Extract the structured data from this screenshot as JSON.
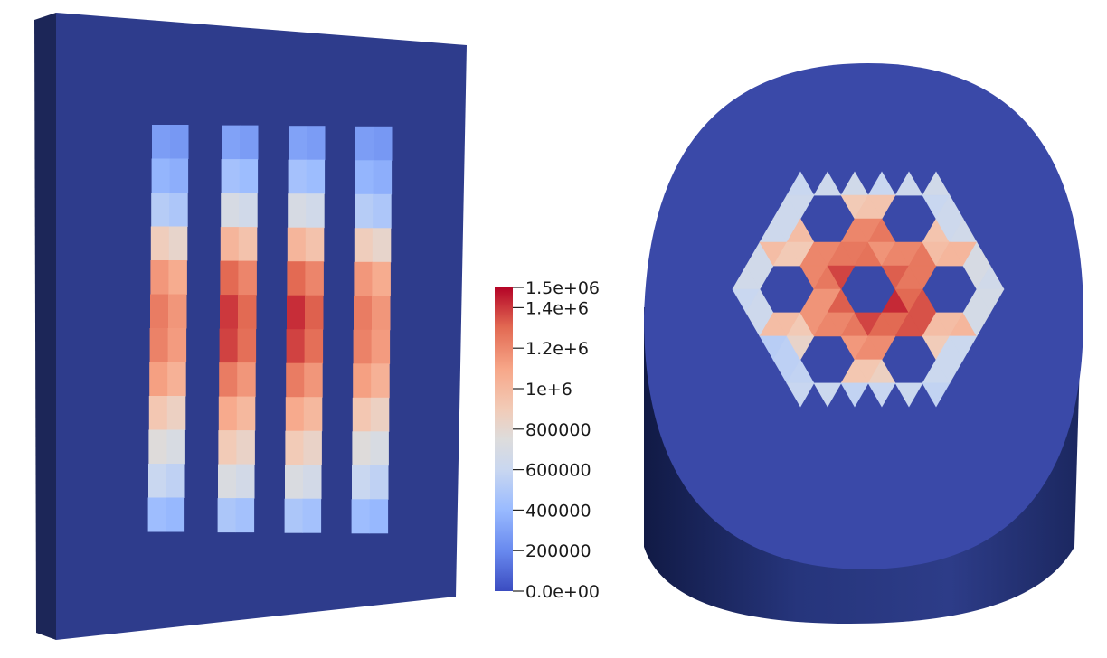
{
  "colors": {
    "background": "#ffffff",
    "zero_field": "#3a4cc0",
    "block_side": "#23306e",
    "block_edge": "#161e4a",
    "cylinder_side": "#26357c",
    "colormap_low": "#3b4cc0",
    "colormap_mid": "#dddddd",
    "colormap_high": "#b40426"
  },
  "colorbar": {
    "min": 0,
    "max": 1500000,
    "labels": [
      {
        "text": "1.5e+06",
        "value": 1500000
      },
      {
        "text": "1.4e+6",
        "value": 1400000
      },
      {
        "text": "1.2e+6",
        "value": 1200000
      },
      {
        "text": "1e+6",
        "value": 1000000
      },
      {
        "text": "800000",
        "value": 800000
      },
      {
        "text": "600000",
        "value": 600000
      },
      {
        "text": "400000",
        "value": 400000
      },
      {
        "text": "200000",
        "value": 200000
      },
      {
        "text": "0.0e+00",
        "value": 0
      }
    ]
  },
  "left_view": {
    "strip_values": [
      [
        280000,
        380000,
        520000,
        880000,
        1150000,
        1240000,
        1220000,
        1120000,
        920000,
        760000,
        600000,
        420000
      ],
      [
        300000,
        450000,
        700000,
        1020000,
        1300000,
        1400000,
        1380000,
        1240000,
        1080000,
        900000,
        720000,
        480000
      ],
      [
        300000,
        450000,
        700000,
        1020000,
        1300000,
        1420000,
        1380000,
        1240000,
        1080000,
        900000,
        720000,
        480000
      ],
      [
        280000,
        380000,
        520000,
        880000,
        1150000,
        1240000,
        1220000,
        1120000,
        920000,
        760000,
        600000,
        420000
      ]
    ]
  },
  "right_view": {
    "hex_ring_values": {
      "outer": 700000,
      "ring": 1050000,
      "inner": 1350000,
      "core": 1480000
    }
  }
}
